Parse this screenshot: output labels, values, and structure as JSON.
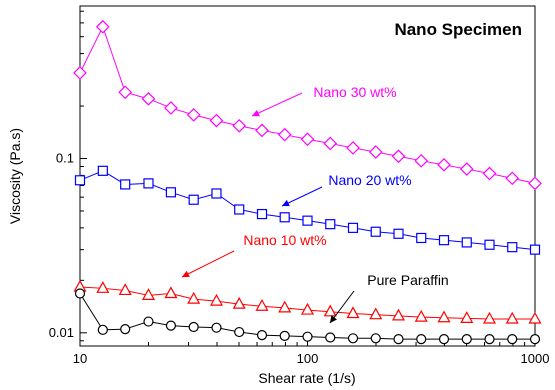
{
  "chart_data": {
    "type": "line",
    "title": "Nano Specimen",
    "xlabel": "Shear rate (1/s)",
    "ylabel": "Viscosity (Pa.s)",
    "xscale": "log",
    "yscale": "log",
    "xlim": [
      10,
      1000
    ],
    "ylim": [
      0.0084,
      0.75
    ],
    "x_ticks": [
      10,
      100,
      1000
    ],
    "x_tick_labels": [
      "10",
      "100",
      "1000"
    ],
    "y_ticks": [
      0.01,
      0.1
    ],
    "y_tick_labels": [
      "0.01",
      "0.1"
    ],
    "grid": false,
    "legend": "none",
    "x": [
      10,
      12.6,
      15.8,
      20,
      25.1,
      31.6,
      39.8,
      50.1,
      63.1,
      79.4,
      100,
      125.9,
      158.5,
      199.5,
      251.2,
      316.2,
      398.1,
      501.2,
      631,
      794.3,
      1000
    ],
    "series": [
      {
        "name": "Nano 30 wt%",
        "color": "#ff00ff",
        "marker": "diamond",
        "values": [
          0.31,
          0.57,
          0.24,
          0.22,
          0.195,
          0.178,
          0.165,
          0.154,
          0.145,
          0.137,
          0.129,
          0.122,
          0.115,
          0.109,
          0.103,
          0.097,
          0.092,
          0.087,
          0.082,
          0.077,
          0.072
        ]
      },
      {
        "name": "Nano 20 wt%",
        "color": "#0000ff",
        "marker": "square",
        "values": [
          0.075,
          0.085,
          0.071,
          0.072,
          0.064,
          0.058,
          0.063,
          0.051,
          0.048,
          0.046,
          0.044,
          0.042,
          0.04,
          0.038,
          0.037,
          0.035,
          0.034,
          0.033,
          0.032,
          0.031,
          0.03
        ]
      },
      {
        "name": "Nano 10 wt%",
        "color": "#ff0000",
        "marker": "triangle",
        "values": [
          0.0183,
          0.018,
          0.0175,
          0.0164,
          0.0168,
          0.0156,
          0.0152,
          0.0146,
          0.0142,
          0.0139,
          0.0135,
          0.0132,
          0.0129,
          0.0127,
          0.0125,
          0.0123,
          0.0122,
          0.0121,
          0.012,
          0.012,
          0.012
        ]
      },
      {
        "name": "Pure Paraffin",
        "color": "#000000",
        "marker": "circle",
        "values": [
          0.0168,
          0.0104,
          0.0105,
          0.0116,
          0.011,
          0.0108,
          0.0107,
          0.0101,
          0.0097,
          0.0096,
          0.0095,
          0.0094,
          0.0093,
          0.0093,
          0.0092,
          0.0092,
          0.0092,
          0.0092,
          0.0092,
          0.0092,
          0.0092
        ]
      }
    ],
    "annotations": [
      {
        "text": "Nano 30 wt%",
        "series": 0,
        "color": "#ff00ff"
      },
      {
        "text": "Nano 20 wt%",
        "series": 1,
        "color": "#0000ff"
      },
      {
        "text": "Nano 10 wt%",
        "series": 2,
        "color": "#ff0000"
      },
      {
        "text": "Pure Paraffin",
        "series": 3,
        "color": "#000000"
      }
    ]
  }
}
